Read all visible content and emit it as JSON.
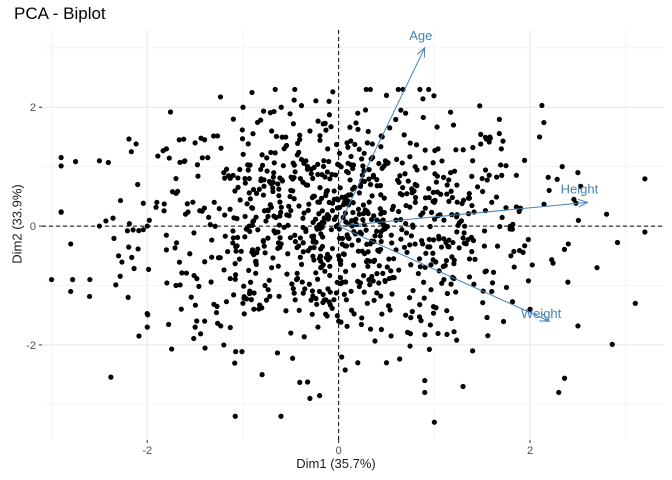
{
  "chart_data": {
    "type": "scatter",
    "title": "PCA - Biplot",
    "xlabel": "Dim1 (35.7%)",
    "ylabel": "Dim2 (33.9%)",
    "xlim": [
      -3.1,
      3.4
    ],
    "ylim": [
      -3.6,
      3.3
    ],
    "xticks": [
      -2,
      0,
      2
    ],
    "yticks": [
      -2,
      0,
      2
    ],
    "grid": true,
    "reference_lines": {
      "x": 0,
      "y": 0,
      "style": "dashed"
    },
    "point_color": "#000000",
    "arrow_color": "#4682B4",
    "approx_point_count": 1000,
    "points": [
      [
        -3.0,
        -0.9
      ],
      [
        -2.6,
        -0.9
      ],
      [
        -2.5,
        0.0
      ],
      [
        -2.5,
        1.1
      ],
      [
        -2.3,
        -0.5
      ],
      [
        -2.2,
        -1.2
      ],
      [
        -2.1,
        0.7
      ],
      [
        -2.0,
        0.0
      ],
      [
        -2.0,
        -1.7
      ],
      [
        -1.9,
        0.4
      ],
      [
        -1.8,
        -0.4
      ],
      [
        -1.8,
        1.3
      ],
      [
        -1.7,
        -1.0
      ],
      [
        -1.6,
        0.2
      ],
      [
        -1.5,
        1.4
      ],
      [
        -1.4,
        -0.6
      ],
      [
        -1.4,
        -1.6
      ],
      [
        -1.2,
        0.9
      ],
      [
        -1.2,
        -2.0
      ],
      [
        -1.1,
        1.8
      ],
      [
        -1.0,
        -1.3
      ],
      [
        -0.9,
        0.3
      ],
      [
        -0.8,
        -2.5
      ],
      [
        -0.8,
        1.2
      ],
      [
        -0.7,
        -0.7
      ],
      [
        -0.6,
        2.0
      ],
      [
        -0.5,
        0.6
      ],
      [
        -0.5,
        -1.8
      ],
      [
        -0.4,
        -0.2
      ],
      [
        -0.3,
        1.6
      ],
      [
        -0.2,
        -1.1
      ],
      [
        -0.1,
        2.1
      ],
      [
        0.0,
        -0.5
      ],
      [
        0.1,
        0.9
      ],
      [
        0.2,
        -2.3
      ],
      [
        0.3,
        1.4
      ],
      [
        0.4,
        -0.8
      ],
      [
        0.5,
        2.2
      ],
      [
        0.6,
        0.1
      ],
      [
        0.7,
        -1.5
      ],
      [
        0.8,
        1.0
      ],
      [
        0.9,
        -2.8
      ],
      [
        1.0,
        0.4
      ],
      [
        1.1,
        -0.9
      ],
      [
        1.2,
        1.7
      ],
      [
        1.3,
        -0.2
      ],
      [
        1.4,
        -2.1
      ],
      [
        1.5,
        0.8
      ],
      [
        1.6,
        -1.1
      ],
      [
        1.7,
        1.3
      ],
      [
        1.8,
        -0.5
      ],
      [
        1.9,
        0.3
      ],
      [
        2.0,
        -1.4
      ],
      [
        2.1,
        1.5
      ],
      [
        2.2,
        0.6
      ],
      [
        2.3,
        -2.8
      ],
      [
        2.4,
        -0.3
      ],
      [
        2.5,
        0.9
      ],
      [
        2.7,
        -0.7
      ],
      [
        2.8,
        0.2
      ],
      [
        3.1,
        -1.3
      ],
      [
        3.2,
        -0.1
      ],
      [
        0.9,
        -2.6
      ],
      [
        1.0,
        -3.3
      ],
      [
        0.5,
        -2.3
      ],
      [
        -0.3,
        -2.9
      ],
      [
        -1.5,
        -1.7
      ],
      [
        -2.8,
        -0.3
      ],
      [
        -2.8,
        -1.1
      ],
      [
        1.3,
        -2.7
      ],
      [
        -1.0,
        2.0
      ],
      [
        0.2,
        1.9
      ],
      [
        0.8,
        0.7
      ],
      [
        -0.6,
        -0.3
      ],
      [
        0.4,
        0.1
      ],
      [
        -0.2,
        0.4
      ],
      [
        0.1,
        -0.2
      ],
      [
        1.1,
        0.1
      ],
      [
        -1.3,
        0.4
      ],
      [
        -0.9,
        -0.4
      ],
      [
        0.6,
        -0.4
      ],
      [
        -0.4,
        0.8
      ],
      [
        1.6,
        0.4
      ],
      [
        -1.7,
        0.8
      ],
      [
        0.0,
        -1.6
      ],
      [
        0.3,
        -1.3
      ],
      [
        -0.7,
        1.6
      ],
      [
        1.4,
        1.1
      ],
      [
        -1.1,
        -0.2
      ],
      [
        0.7,
        1.9
      ]
    ],
    "arrows": [
      {
        "name": "Age",
        "x": 0.9,
        "y": 3.0
      },
      {
        "name": "Height",
        "x": 2.6,
        "y": 0.4
      },
      {
        "name": "Weight",
        "x": 2.2,
        "y": -1.6
      }
    ]
  }
}
